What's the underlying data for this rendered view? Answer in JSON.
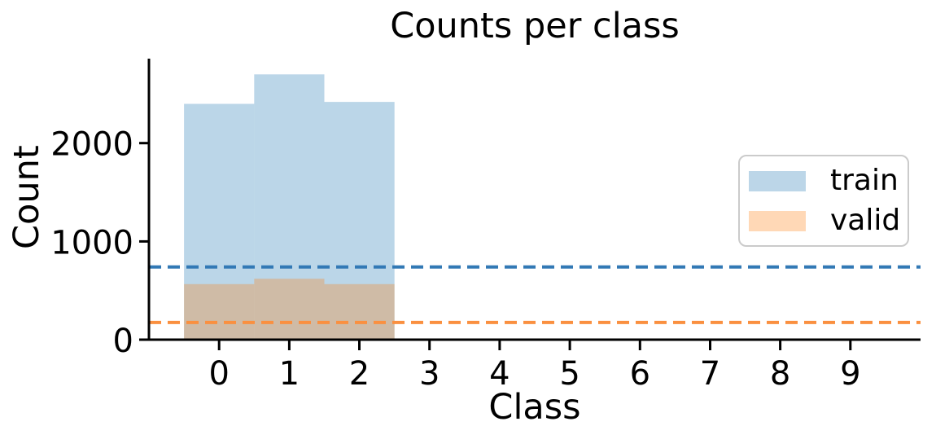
{
  "chart_data": {
    "type": "bar",
    "variant": "overlapping-histogram",
    "title": "Counts per class",
    "xlabel": "Class",
    "ylabel": "Count",
    "xlim": [
      -1,
      10
    ],
    "ylim": [
      0,
      2860
    ],
    "grid": false,
    "categories": [
      0,
      1,
      2,
      3,
      4,
      5,
      6,
      7,
      8,
      9
    ],
    "xtick_labels": [
      "0",
      "1",
      "2",
      "3",
      "4",
      "5",
      "6",
      "7",
      "8",
      "9"
    ],
    "ytick_values": [
      0,
      1000,
      2000
    ],
    "ytick_labels": [
      "0",
      "1000",
      "2000"
    ],
    "series": [
      {
        "name": "train",
        "classes": [
          0,
          1,
          2
        ],
        "values": [
          2400,
          2700,
          2420
        ],
        "fill_rgba": "rgba(31,119,180,0.3)",
        "swatch_color": "#bcd6e8"
      },
      {
        "name": "valid",
        "classes": [
          0,
          1,
          2
        ],
        "values": [
          565,
          620,
          565
        ],
        "fill_rgba": "rgba(255,127,14,0.3)",
        "swatch_color": "#ffd8b6"
      }
    ],
    "hlines": [
      {
        "series": "train",
        "value": 740,
        "color": "#3279b5",
        "style": "dashed"
      },
      {
        "series": "valid",
        "value": 175,
        "color": "#fa9040",
        "style": "dashed"
      }
    ],
    "legend": {
      "position": "center-right",
      "entries": [
        "train",
        "valid"
      ]
    },
    "axis_color": "#000000",
    "text_color": "#000000"
  }
}
